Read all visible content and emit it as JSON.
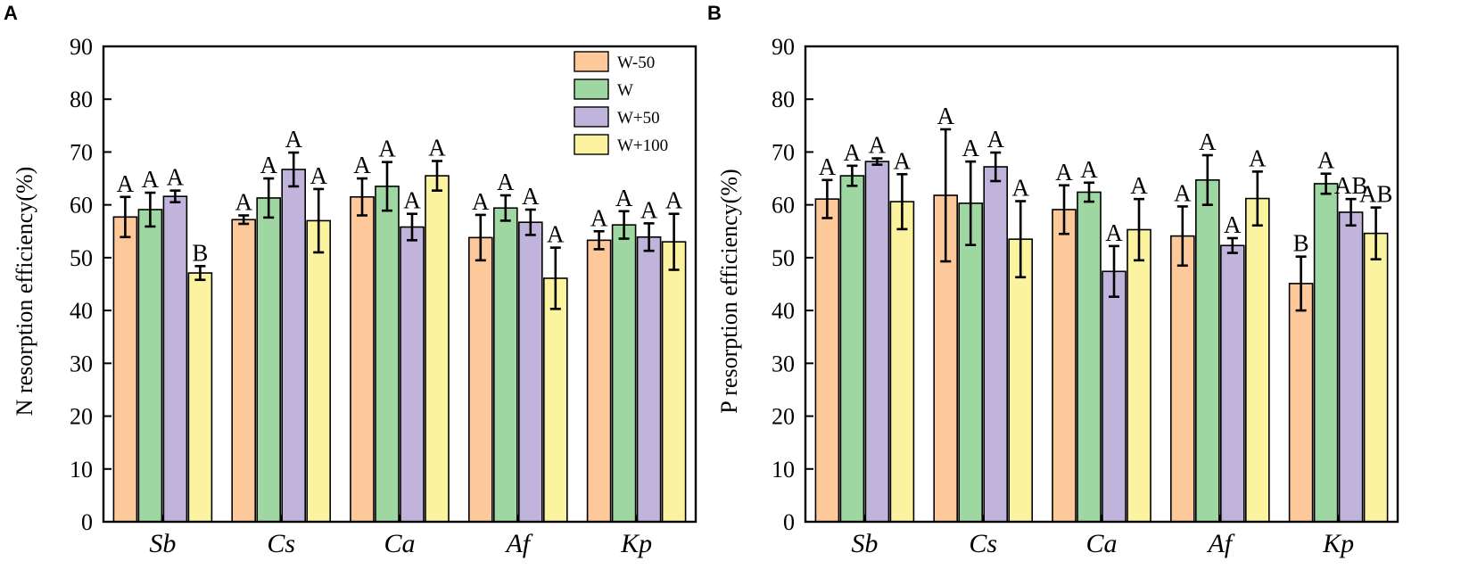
{
  "colors": {
    "W-50": "#FDC89A",
    "W": "#9ED7A2",
    "W+50": "#C0B4DC",
    "W+100": "#FBF39F"
  },
  "legend": [
    "W-50",
    "W",
    "W+50",
    "W+100"
  ],
  "chart_data": [
    {
      "type": "bar",
      "panel_label": "A",
      "title": "",
      "xlabel": "",
      "ylabel": "N resorption efficiency(%)",
      "ylim": [
        0,
        90
      ],
      "yticks": [
        0,
        10,
        20,
        30,
        40,
        50,
        60,
        70,
        80,
        90
      ],
      "categories": [
        "Sb",
        "Cs",
        "Ca",
        "Af",
        "Kp"
      ],
      "series": [
        {
          "name": "W-50",
          "values": [
            57.7,
            57.2,
            61.5,
            53.8,
            53.3
          ],
          "errors": [
            3.8,
            0.8,
            3.5,
            4.3,
            1.7
          ],
          "letters": [
            "A",
            "A",
            "A",
            "A",
            "A"
          ]
        },
        {
          "name": "W",
          "values": [
            59.1,
            61.3,
            63.5,
            59.4,
            56.2
          ],
          "errors": [
            3.2,
            3.7,
            4.6,
            2.4,
            2.6
          ],
          "letters": [
            "A",
            "A",
            "A",
            "A",
            "A"
          ]
        },
        {
          "name": "W+50",
          "values": [
            61.6,
            66.7,
            55.8,
            56.7,
            53.9
          ],
          "errors": [
            1.1,
            3.2,
            2.5,
            2.4,
            2.6
          ],
          "letters": [
            "A",
            "A",
            "A",
            "A",
            "A"
          ]
        },
        {
          "name": "W+100",
          "values": [
            47.1,
            57.0,
            65.5,
            46.1,
            53.0
          ],
          "errors": [
            1.3,
            6.0,
            2.8,
            5.8,
            5.3
          ],
          "letters": [
            "B",
            "A",
            "A",
            "A",
            "A"
          ]
        }
      ]
    },
    {
      "type": "bar",
      "panel_label": "B",
      "title": "",
      "xlabel": "",
      "ylabel": "P resorption efficiency(%)",
      "ylim": [
        0,
        90
      ],
      "yticks": [
        0,
        10,
        20,
        30,
        40,
        50,
        60,
        70,
        80,
        90
      ],
      "categories": [
        "Sb",
        "Cs",
        "Ca",
        "Af",
        "Kp"
      ],
      "series": [
        {
          "name": "W-50",
          "values": [
            61.1,
            61.8,
            59.1,
            54.1,
            45.1
          ],
          "errors": [
            3.6,
            12.5,
            4.6,
            5.6,
            5.1
          ],
          "letters": [
            "A",
            "A",
            "A",
            "A",
            "B"
          ]
        },
        {
          "name": "W",
          "values": [
            65.5,
            60.3,
            62.4,
            64.7,
            64.0
          ],
          "errors": [
            1.9,
            7.9,
            1.8,
            4.7,
            1.9
          ],
          "letters": [
            "A",
            "A",
            "A",
            "A",
            "A"
          ]
        },
        {
          "name": "W+50",
          "values": [
            68.2,
            67.2,
            47.4,
            52.3,
            58.6
          ],
          "errors": [
            0.6,
            2.7,
            4.8,
            1.4,
            2.5
          ],
          "letters": [
            "A",
            "A",
            "A",
            "A",
            "AB"
          ]
        },
        {
          "name": "W+100",
          "values": [
            60.6,
            53.5,
            55.3,
            61.2,
            54.6
          ],
          "errors": [
            5.2,
            7.2,
            5.8,
            5.1,
            4.9
          ],
          "letters": [
            "A",
            "A",
            "A",
            "A",
            "AB"
          ]
        }
      ]
    }
  ]
}
